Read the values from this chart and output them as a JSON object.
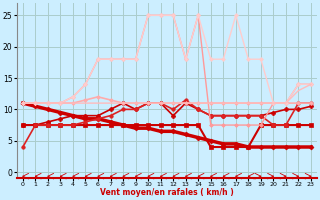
{
  "xlabel": "Vent moyen/en rafales ( km/h )",
  "background_color": "#cceeff",
  "grid_color": "#aacccc",
  "xlim": [
    -0.5,
    23.5
  ],
  "ylim": [
    -1,
    27
  ],
  "xticks": [
    0,
    1,
    2,
    3,
    4,
    5,
    6,
    7,
    8,
    9,
    10,
    11,
    12,
    13,
    14,
    15,
    16,
    17,
    18,
    19,
    20,
    21,
    22,
    23
  ],
  "yticks": [
    0,
    5,
    10,
    15,
    20,
    25
  ],
  "series": [
    {
      "x": [
        0,
        1,
        2,
        3,
        4,
        5,
        6,
        7,
        8,
        9,
        10,
        11,
        12,
        13,
        14,
        15,
        16,
        17,
        18,
        19,
        20,
        21,
        22,
        23
      ],
      "y": [
        11,
        10.5,
        10,
        9.5,
        9,
        8.5,
        8.5,
        8,
        7.5,
        7,
        7,
        6.5,
        6.5,
        6,
        5.5,
        5,
        4.5,
        4.5,
        4,
        4,
        4,
        4,
        4,
        4
      ],
      "color": "#cc0000",
      "lw": 2.5,
      "marker": "D",
      "ms": 2.5
    },
    {
      "x": [
        0,
        1,
        2,
        3,
        4,
        5,
        6,
        7,
        8,
        9,
        10,
        11,
        12,
        13,
        14,
        15,
        16,
        17,
        18,
        19,
        20,
        21,
        22,
        23
      ],
      "y": [
        7.5,
        7.5,
        7.5,
        7.5,
        7.5,
        7.5,
        7.5,
        7.5,
        7.5,
        7.5,
        7.5,
        7.5,
        7.5,
        7.5,
        7.5,
        4,
        4,
        4,
        4,
        7.5,
        7.5,
        7.5,
        7.5,
        7.5
      ],
      "color": "#cc0000",
      "lw": 1.5,
      "marker": "s",
      "ms": 2.5
    },
    {
      "x": [
        0,
        1,
        2,
        3,
        4,
        5,
        6,
        7,
        8,
        9,
        10,
        11,
        12,
        13,
        14,
        15,
        16,
        17,
        18,
        19,
        20,
        21,
        22,
        23
      ],
      "y": [
        7.5,
        7.5,
        8,
        8.5,
        9,
        9,
        9,
        10,
        11,
        10,
        11,
        11,
        9,
        11,
        10,
        9,
        9,
        9,
        9,
        9,
        9.5,
        10,
        10,
        10.5
      ],
      "color": "#cc0000",
      "lw": 1.2,
      "marker": "P",
      "ms": 3
    },
    {
      "x": [
        0,
        1,
        2,
        3,
        4,
        5,
        6,
        7,
        8,
        9,
        10,
        11,
        12,
        13,
        14,
        15,
        16,
        17,
        18,
        19,
        20,
        21,
        22,
        23
      ],
      "y": [
        4,
        7.5,
        7.5,
        7.5,
        7.5,
        8,
        8.5,
        9,
        10,
        10,
        11,
        11,
        10,
        11.5,
        10,
        9,
        9,
        9,
        9,
        9,
        7.5,
        7.5,
        11,
        11
      ],
      "color": "#dd2222",
      "lw": 1.2,
      "marker": "o",
      "ms": 2.5
    },
    {
      "x": [
        0,
        1,
        2,
        3,
        4,
        5,
        6,
        7,
        8,
        9,
        10,
        11,
        12,
        13,
        14,
        15,
        16,
        17,
        18,
        19,
        20,
        21,
        22,
        23
      ],
      "y": [
        11,
        11,
        11,
        11,
        11,
        11.5,
        12,
        11.5,
        11,
        11,
        11,
        11,
        11,
        11,
        11,
        11,
        11,
        11,
        11,
        11,
        11,
        11,
        11,
        11
      ],
      "color": "#ffaaaa",
      "lw": 1.2,
      "marker": "D",
      "ms": 2
    },
    {
      "x": [
        0,
        1,
        2,
        3,
        4,
        5,
        6,
        7,
        8,
        9,
        10,
        11,
        12,
        13,
        14,
        15,
        16,
        17,
        18,
        19,
        20,
        21,
        22,
        23
      ],
      "y": [
        11,
        11,
        11,
        11,
        12,
        14,
        18,
        18,
        18,
        18,
        25,
        25,
        25,
        18,
        25,
        7.5,
        7.5,
        7.5,
        7.5,
        7.5,
        11,
        11,
        14,
        14
      ],
      "color": "#ff9999",
      "lw": 1.0,
      "marker": "D",
      "ms": 2
    },
    {
      "x": [
        0,
        1,
        2,
        3,
        4,
        5,
        6,
        7,
        8,
        9,
        10,
        11,
        12,
        13,
        14,
        15,
        16,
        17,
        18,
        19,
        20,
        21,
        22,
        23
      ],
      "y": [
        11,
        11,
        11,
        11,
        12,
        14,
        18,
        18,
        18,
        18,
        25,
        25,
        25,
        18,
        25,
        18,
        18,
        25,
        18,
        18,
        11,
        11,
        14,
        14
      ],
      "color": "#ffcccc",
      "lw": 1.0,
      "marker": "D",
      "ms": 2
    },
    {
      "x": [
        0,
        1,
        2,
        3,
        4,
        5,
        6,
        7,
        8,
        9,
        10,
        11,
        12,
        13,
        14,
        15,
        16,
        17,
        18,
        19,
        20,
        21,
        22,
        23
      ],
      "y": [
        11,
        11,
        11,
        11,
        11,
        11,
        11,
        11,
        11,
        11,
        11,
        11,
        11,
        11,
        11,
        11,
        11,
        11,
        11,
        11,
        11,
        11,
        13,
        14
      ],
      "color": "#ffbbbb",
      "lw": 1.0,
      "marker": null,
      "ms": 0
    }
  ],
  "arrow_color": "#cc0000"
}
